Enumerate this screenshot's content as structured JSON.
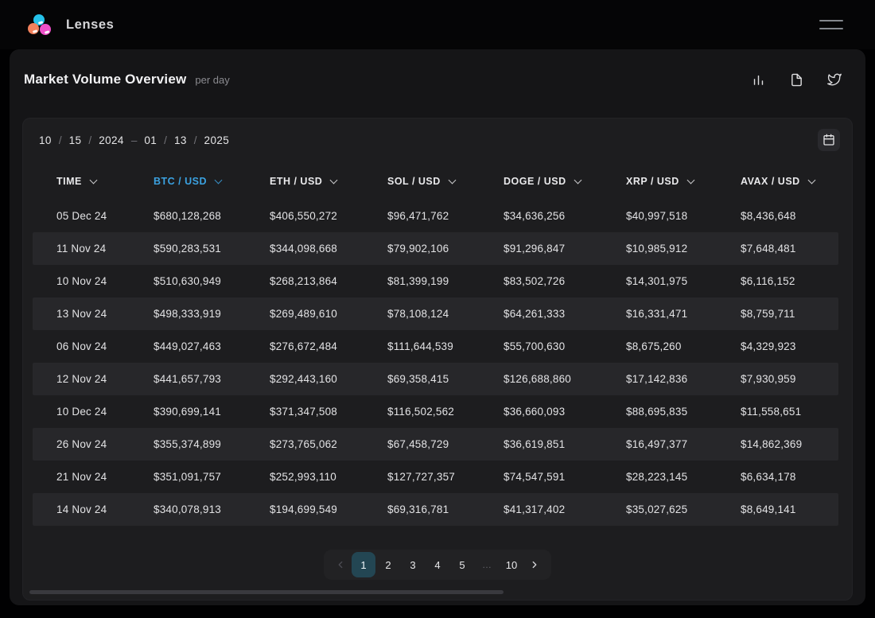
{
  "app": {
    "title": "Lenses"
  },
  "header": {
    "title": "Market Volume Overview",
    "subtitle": "per day",
    "icons": [
      "bar-chart-icon",
      "document-icon",
      "twitter-icon"
    ]
  },
  "date_range": {
    "start": [
      "10",
      "15",
      "2024"
    ],
    "separator": "–",
    "end": [
      "01",
      "13",
      "2025"
    ]
  },
  "table": {
    "columns": [
      {
        "id": "time",
        "label": "TIME",
        "active": false
      },
      {
        "id": "btc-usd",
        "label": "BTC / USD",
        "active": true
      },
      {
        "id": "eth-usd",
        "label": "ETH / USD",
        "active": false
      },
      {
        "id": "sol-usd",
        "label": "SOL / USD",
        "active": false
      },
      {
        "id": "doge-usd",
        "label": "DOGE / USD",
        "active": false
      },
      {
        "id": "xrp-usd",
        "label": "XRP / USD",
        "active": false
      },
      {
        "id": "avax-usd",
        "label": "AVAX / USD",
        "active": false
      }
    ],
    "rows": [
      [
        "05 Dec 24",
        "$680,128,268",
        "$406,550,272",
        "$96,471,762",
        "$34,636,256",
        "$40,997,518",
        "$8,436,648"
      ],
      [
        "11 Nov 24",
        "$590,283,531",
        "$344,098,668",
        "$79,902,106",
        "$91,296,847",
        "$10,985,912",
        "$7,648,481"
      ],
      [
        "10 Nov 24",
        "$510,630,949",
        "$268,213,864",
        "$81,399,199",
        "$83,502,726",
        "$14,301,975",
        "$6,116,152"
      ],
      [
        "13 Nov 24",
        "$498,333,919",
        "$269,489,610",
        "$78,108,124",
        "$64,261,333",
        "$16,331,471",
        "$8,759,711"
      ],
      [
        "06 Nov 24",
        "$449,027,463",
        "$276,672,484",
        "$111,644,539",
        "$55,700,630",
        "$8,675,260",
        "$4,329,923"
      ],
      [
        "12 Nov 24",
        "$441,657,793",
        "$292,443,160",
        "$69,358,415",
        "$126,688,860",
        "$17,142,836",
        "$7,930,959"
      ],
      [
        "10 Dec 24",
        "$390,699,141",
        "$371,347,508",
        "$116,502,562",
        "$36,660,093",
        "$88,695,835",
        "$11,558,651"
      ],
      [
        "26 Nov 24",
        "$355,374,899",
        "$273,765,062",
        "$67,458,729",
        "$36,619,851",
        "$16,497,377",
        "$14,862,369"
      ],
      [
        "21 Nov 24",
        "$351,091,757",
        "$252,993,110",
        "$127,727,357",
        "$74,547,591",
        "$28,223,145",
        "$6,634,178"
      ],
      [
        "14 Nov 24",
        "$340,078,913",
        "$194,699,549",
        "$69,316,781",
        "$41,317,402",
        "$35,027,625",
        "$8,649,141"
      ]
    ]
  },
  "pagination": {
    "pages": [
      "1",
      "2",
      "3",
      "4",
      "5",
      "…",
      "10"
    ],
    "active": "1"
  },
  "colors": {
    "accent": "#3ba2e1",
    "active_page_bg": "#234653",
    "logo_cyan": "#25c2ea",
    "logo_orange": "#f2815c",
    "logo_pink": "#ee4fc8"
  }
}
